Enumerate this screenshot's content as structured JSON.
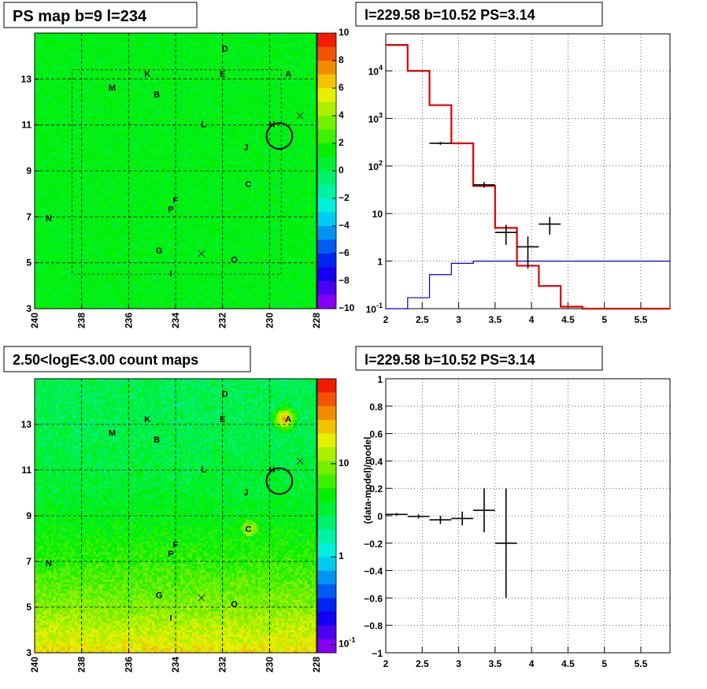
{
  "titles": {
    "ps_map": "PS map b=9 l=234",
    "spectrum": "l=229.58 b=10.52 PS=3.14",
    "count_map": "2.50<logE<3.00 count maps",
    "residual": "l=229.58 b=10.52 PS=3.14"
  },
  "colors": {
    "data": "#000000",
    "model": "#dd0000",
    "background_model": "#0000cc",
    "marker": "#000000"
  },
  "chart_data": [
    {
      "id": "ps-map",
      "type": "heatmap",
      "title": "PS map b=9 l=234",
      "xlim": [
        240,
        228
      ],
      "ylim": [
        3,
        15
      ],
      "xticks": [
        "240",
        "238",
        "236",
        "234",
        "232",
        "230",
        "228"
      ],
      "yticks": [
        "3",
        "5",
        "7",
        "9",
        "11",
        "13"
      ],
      "colorbar": {
        "min": -10,
        "max": 10,
        "ticks": [
          "10",
          "8",
          "6",
          "4",
          "2",
          "0",
          "−2",
          "−4",
          "−6",
          "−8",
          "−10"
        ]
      },
      "grid": true,
      "sources": [
        {
          "label": "D",
          "l": 231.9,
          "b": 14.2
        },
        {
          "label": "A",
          "l": 229.2,
          "b": 13.1
        },
        {
          "label": "K",
          "l": 235.2,
          "b": 13.1
        },
        {
          "label": "E",
          "l": 232.0,
          "b": 13.1
        },
        {
          "label": "M",
          "l": 236.7,
          "b": 12.5
        },
        {
          "label": "B",
          "l": 234.8,
          "b": 12.2
        },
        {
          "label": "L",
          "l": 232.8,
          "b": 10.9
        },
        {
          "label": "H",
          "l": 229.9,
          "b": 10.9
        },
        {
          "label": "J",
          "l": 231.0,
          "b": 9.9
        },
        {
          "label": "C",
          "l": 230.9,
          "b": 8.3
        },
        {
          "label": "F",
          "l": 234.0,
          "b": 7.6
        },
        {
          "label": "P",
          "l": 234.2,
          "b": 7.2
        },
        {
          "label": "N",
          "l": 239.4,
          "b": 6.8
        },
        {
          "label": "G",
          "l": 234.7,
          "b": 5.4
        },
        {
          "label": "O",
          "l": 231.5,
          "b": 5.0
        },
        {
          "label": "I",
          "l": 234.2,
          "b": 4.4
        }
      ],
      "crosses": [
        {
          "l": 228.7,
          "b": 11.4
        },
        {
          "l": 232.9,
          "b": 5.4
        }
      ],
      "circle": {
        "l": 229.58,
        "b": 10.52,
        "r": 0.55
      },
      "roi_box": {
        "l": [
          238.4,
          229.5
        ],
        "b": [
          4.5,
          13.4
        ]
      }
    },
    {
      "id": "spectrum",
      "type": "line",
      "title": "l=229.58 b=10.52 PS=3.14",
      "log_y": true,
      "xlim": [
        2,
        5.9
      ],
      "ylim": [
        0.1,
        60000
      ],
      "xticks": [
        "2",
        "2.5",
        "3",
        "3.5",
        "4",
        "4.5",
        "5",
        "5.5"
      ],
      "yticks": [
        "10^-1",
        "1",
        "10",
        "10^2",
        "10^3",
        "10^4"
      ],
      "grid": true,
      "series": [
        {
          "role": "model",
          "edges": [
            2.0,
            2.3,
            2.6,
            2.9,
            3.2,
            3.5,
            3.8,
            4.1,
            4.4,
            4.7,
            5.0,
            5.3,
            5.6,
            5.9
          ],
          "values": [
            35000,
            10000,
            1900,
            300,
            38,
            5,
            0.8,
            0.3,
            0.11,
            0.1,
            0.1,
            0.1,
            0.1
          ]
        },
        {
          "role": "background_model",
          "edges": [
            2.0,
            2.3,
            2.6,
            2.9,
            3.2,
            3.5,
            3.8,
            4.1,
            4.4,
            4.7,
            5.0,
            5.3,
            5.6,
            5.9
          ],
          "values": [
            0.1,
            0.17,
            0.52,
            0.9,
            1.0,
            1.0,
            1.0,
            1.0,
            1.0,
            1.0,
            1.0,
            1.0,
            1.0,
            1.0
          ]
        },
        {
          "role": "data",
          "points": [
            {
              "x": 2.75,
              "xerr": 0.15,
              "y": 300,
              "lo": 280,
              "hi": 320
            },
            {
              "x": 3.35,
              "xerr": 0.15,
              "y": 40,
              "lo": 35,
              "hi": 46
            },
            {
              "x": 3.65,
              "xerr": 0.15,
              "y": 4,
              "lo": 2.2,
              "hi": 5.8
            },
            {
              "x": 3.95,
              "xerr": 0.15,
              "y": 2,
              "lo": 0.7,
              "hi": 3.3
            },
            {
              "x": 4.25,
              "xerr": 0.15,
              "y": 6,
              "lo": 3.6,
              "hi": 8.5
            }
          ]
        }
      ]
    },
    {
      "id": "count-map",
      "type": "heatmap",
      "title": "2.50<logE<3.00 count maps",
      "xlim": [
        240,
        228
      ],
      "ylim": [
        3,
        15
      ],
      "xticks": [
        "240",
        "238",
        "236",
        "234",
        "232",
        "230",
        "228"
      ],
      "yticks": [
        "3",
        "5",
        "7",
        "9",
        "11",
        "13"
      ],
      "colorbar": {
        "log": true,
        "ticks": [
          "10",
          "1",
          "10^-1"
        ]
      },
      "grid": true
    },
    {
      "id": "residual",
      "type": "scatter",
      "title": "l=229.58 b=10.52 PS=3.14",
      "ylabel": "(data-model)/model",
      "xlim": [
        2,
        5.9
      ],
      "ylim": [
        -1,
        1
      ],
      "xticks": [
        "2",
        "2.5",
        "3",
        "3.5",
        "4",
        "4.5",
        "5",
        "5.5"
      ],
      "yticks": [
        "1",
        "0.8",
        "0.6",
        "0.4",
        "0.2",
        "0",
        "−0.2",
        "−0.4",
        "−0.6",
        "−0.8",
        "−1"
      ],
      "grid": true,
      "points": [
        {
          "x": 2.15,
          "xerr": 0.15,
          "y": 0.01,
          "err": 0.01
        },
        {
          "x": 2.45,
          "xerr": 0.15,
          "y": -0.005,
          "err": 0.015
        },
        {
          "x": 2.75,
          "xerr": 0.15,
          "y": -0.03,
          "err": 0.03
        },
        {
          "x": 3.05,
          "xerr": 0.15,
          "y": -0.02,
          "err": 0.05
        },
        {
          "x": 3.35,
          "xerr": 0.15,
          "y": 0.04,
          "err": 0.16
        },
        {
          "x": 3.65,
          "xerr": 0.15,
          "y": -0.2,
          "err": 0.4
        }
      ]
    }
  ]
}
